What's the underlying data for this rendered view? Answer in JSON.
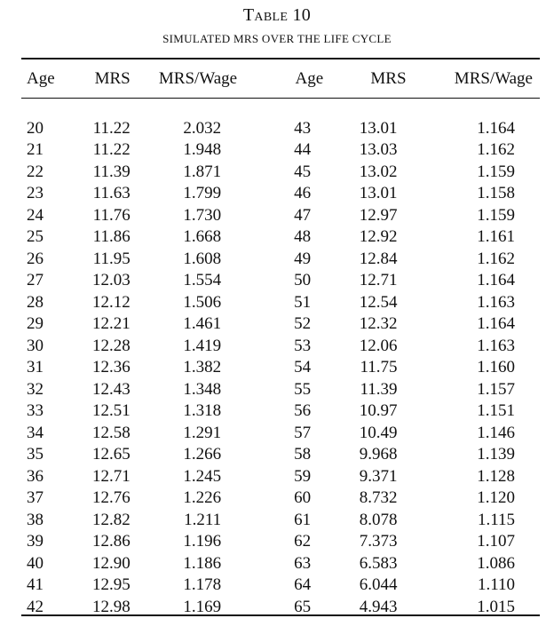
{
  "table": {
    "title": "Table 10",
    "subtitle": "SIMULATED MRS OVER THE LIFE CYCLE",
    "headers": [
      "Age",
      "MRS",
      "MRS/Wage",
      "Age",
      "MRS",
      "MRS/Wage"
    ],
    "rows": [
      [
        "20",
        "11.22",
        "2.032",
        "43",
        "13.01",
        "1.164"
      ],
      [
        "21",
        "11.22",
        "1.948",
        "44",
        "13.03",
        "1.162"
      ],
      [
        "22",
        "11.39",
        "1.871",
        "45",
        "13.02",
        "1.159"
      ],
      [
        "23",
        "11.63",
        "1.799",
        "46",
        "13.01",
        "1.158"
      ],
      [
        "24",
        "11.76",
        "1.730",
        "47",
        "12.97",
        "1.159"
      ],
      [
        "25",
        "11.86",
        "1.668",
        "48",
        "12.92",
        "1.161"
      ],
      [
        "26",
        "11.95",
        "1.608",
        "49",
        "12.84",
        "1.162"
      ],
      [
        "27",
        "12.03",
        "1.554",
        "50",
        "12.71",
        "1.164"
      ],
      [
        "28",
        "12.12",
        "1.506",
        "51",
        "12.54",
        "1.163"
      ],
      [
        "29",
        "12.21",
        "1.461",
        "52",
        "12.32",
        "1.164"
      ],
      [
        "30",
        "12.28",
        "1.419",
        "53",
        "12.06",
        "1.163"
      ],
      [
        "31",
        "12.36",
        "1.382",
        "54",
        "11.75",
        "1.160"
      ],
      [
        "32",
        "12.43",
        "1.348",
        "55",
        "11.39",
        "1.157"
      ],
      [
        "33",
        "12.51",
        "1.318",
        "56",
        "10.97",
        "1.151"
      ],
      [
        "34",
        "12.58",
        "1.291",
        "57",
        "10.49",
        "1.146"
      ],
      [
        "35",
        "12.65",
        "1.266",
        "58",
        "9.968",
        "1.139"
      ],
      [
        "36",
        "12.71",
        "1.245",
        "59",
        "9.371",
        "1.128"
      ],
      [
        "37",
        "12.76",
        "1.226",
        "60",
        "8.732",
        "1.120"
      ],
      [
        "38",
        "12.82",
        "1.211",
        "61",
        "8.078",
        "1.115"
      ],
      [
        "39",
        "12.86",
        "1.196",
        "62",
        "7.373",
        "1.107"
      ],
      [
        "40",
        "12.90",
        "1.186",
        "63",
        "6.583",
        "1.086"
      ],
      [
        "41",
        "12.95",
        "1.178",
        "64",
        "6.044",
        "1.110"
      ],
      [
        "42",
        "12.98",
        "1.169",
        "65",
        "4.943",
        "1.015"
      ]
    ]
  }
}
